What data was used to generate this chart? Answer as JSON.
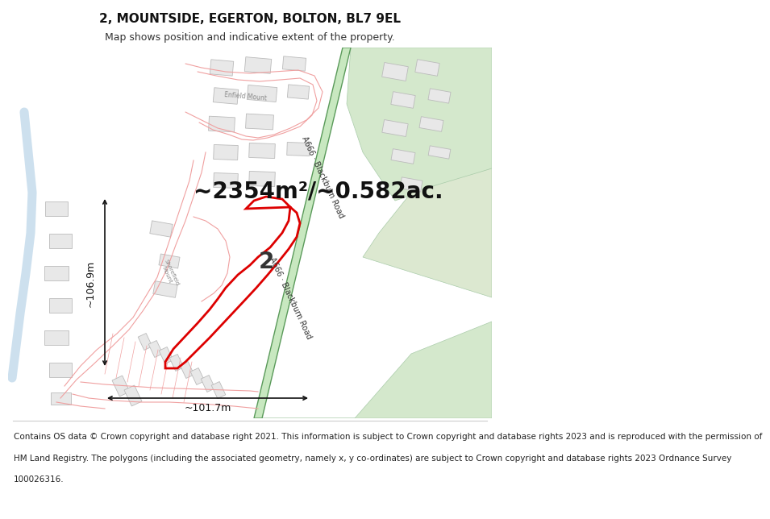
{
  "title_line1": "2, MOUNTSIDE, EGERTON, BOLTON, BL7 9EL",
  "title_line2": "Map shows position and indicative extent of the property.",
  "area_text": "~2354m²/~0.582ac.",
  "width_label": "~101.7m",
  "height_label": "~106.9m",
  "copyright_lines": [
    "Contains OS data © Crown copyright and database right 2021. This information is subject to Crown copyright and database rights 2023 and is reproduced with the permission of",
    "HM Land Registry. The polygons (including the associated geometry, namely x, y co-ordinates) are subject to Crown copyright and database rights 2023 Ordnance Survey",
    "100026316."
  ],
  "map_bg": "#ffffff",
  "title_bg": "#ffffff",
  "footer_bg": "#ffffff",
  "road_green_fill": "#c8e8c0",
  "road_green_edge": "#5a9a5a",
  "building_fill": "#e8e8e8",
  "building_edge": "#bbbbbb",
  "road_outline_color": "#f0a0a0",
  "property_color": "#dd0000",
  "green_area_fill": "#d4e8cc",
  "green_area_edge": "#aaccaa",
  "blue_curve_color": "#b8d4e8",
  "road_label_color": "#333333",
  "street_label_color": "#888888",
  "measurement_color": "#111111",
  "title_fontsize": 11,
  "subtitle_fontsize": 9,
  "area_fontsize": 20,
  "measurement_fontsize": 9,
  "footer_fontsize": 7.5,
  "number2_fontsize": 20
}
